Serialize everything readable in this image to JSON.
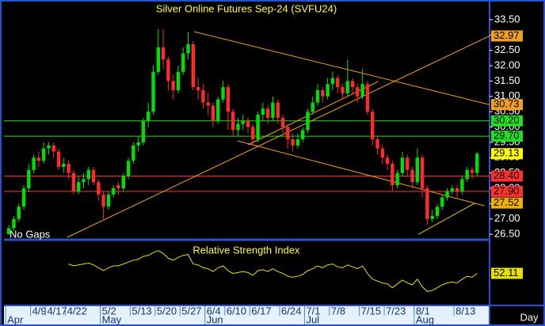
{
  "chart_data": [
    {
      "type": "candlestick",
      "title": "Silver Online Futures Sep-24 (SVFU24)",
      "note": "No Gaps",
      "x_label": "Day",
      "categories": [
        null,
        null,
        null,
        null,
        null,
        "4/9",
        null,
        null,
        "4/17",
        null,
        null,
        null,
        "4/22",
        null,
        null,
        null,
        null,
        null,
        null,
        "5/2",
        null,
        null,
        null,
        null,
        null,
        "5/13",
        null,
        null,
        null,
        null,
        "5/20",
        null,
        null,
        null,
        null,
        "5/27",
        null,
        null,
        null,
        null,
        "6/4",
        null,
        null,
        null,
        "6/10",
        null,
        null,
        null,
        null,
        "6/17",
        null,
        null,
        null,
        null,
        null,
        "6/24",
        null,
        null,
        null,
        null,
        "7/1",
        null,
        null,
        null,
        null,
        "7/8",
        null,
        null,
        null,
        null,
        null,
        "7/15",
        null,
        null,
        null,
        null,
        "7/23",
        null,
        null,
        null,
        null,
        null,
        "8/1",
        null,
        null,
        null,
        null,
        null,
        null,
        null,
        "8/13",
        null,
        null,
        null,
        null
      ],
      "months": [
        "Apr",
        null,
        null,
        null,
        null,
        null,
        null,
        null,
        null,
        null,
        null,
        null,
        null,
        null,
        null,
        null,
        null,
        null,
        null,
        "May",
        null,
        null,
        null,
        null,
        null,
        null,
        null,
        null,
        null,
        null,
        null,
        null,
        null,
        null,
        null,
        null,
        null,
        null,
        null,
        null,
        "Jun",
        null,
        null,
        null,
        null,
        null,
        null,
        null,
        null,
        null,
        null,
        null,
        null,
        null,
        null,
        null,
        null,
        null,
        null,
        null,
        "Jul",
        null,
        null,
        null,
        null,
        null,
        null,
        null,
        null,
        null,
        null,
        null,
        null,
        null,
        null,
        null,
        null,
        null,
        null,
        null,
        null,
        null,
        "Aug",
        null,
        null,
        null,
        null,
        null,
        null,
        null,
        null,
        null,
        null,
        null,
        null
      ],
      "open": [
        26.5,
        26.7,
        27.0,
        27.4,
        28.0,
        28.6,
        29.0,
        28.9,
        29.3,
        29.4,
        29.2,
        28.7,
        28.8,
        28.5,
        27.9,
        28.2,
        28.3,
        28.6,
        28.2,
        27.8,
        27.4,
        27.8,
        28.1,
        28.0,
        28.4,
        28.9,
        29.4,
        29.5,
        30.2,
        30.5,
        31.8,
        32.6,
        32.2,
        31.5,
        31.2,
        31.8,
        32.4,
        32.7,
        31.3,
        31.2,
        30.8,
        30.7,
        30.2,
        30.9,
        31.3,
        30.5,
        29.9,
        30.1,
        30.2,
        30.0,
        29.6,
        30.4,
        30.6,
        30.3,
        30.8,
        30.3,
        30.0,
        29.6,
        29.4,
        29.6,
        29.9,
        30.5,
        30.8,
        31.2,
        31.0,
        31.4,
        31.6,
        31.3,
        31.1,
        31.5,
        31.3,
        31.0,
        31.4,
        30.5,
        29.6,
        29.3,
        29.0,
        28.8,
        28.1,
        28.5,
        29.0,
        28.6,
        28.2,
        29.0,
        28.0,
        27.0,
        27.1,
        27.4,
        27.7,
        27.9,
        28.0,
        27.9,
        28.3,
        28.6,
        28.5
      ],
      "high": [
        26.8,
        27.1,
        27.5,
        28.1,
        28.8,
        29.1,
        29.2,
        29.5,
        29.5,
        29.5,
        29.3,
        29.0,
        28.9,
        28.6,
        28.4,
        28.5,
        28.7,
        28.7,
        28.3,
        27.9,
        27.9,
        28.1,
        28.2,
        28.5,
        29.0,
        29.5,
        29.7,
        30.3,
        30.8,
        32.0,
        33.2,
        33.2,
        32.3,
        31.7,
        32.0,
        32.6,
        33.1,
        32.8,
        31.6,
        31.4,
        31.1,
        30.8,
        31.0,
        31.5,
        31.4,
        30.6,
        30.3,
        30.4,
        30.3,
        30.1,
        30.5,
        30.8,
        30.7,
        31.0,
        30.9,
        30.4,
        30.1,
        29.8,
        29.8,
        30.0,
        30.6,
        31.0,
        31.4,
        31.3,
        31.6,
        31.8,
        31.7,
        31.4,
        32.2,
        31.6,
        31.4,
        31.9,
        31.5,
        30.6,
        29.7,
        29.4,
        29.1,
        28.9,
        28.6,
        29.2,
        29.1,
        28.7,
        29.3,
        29.1,
        28.1,
        27.3,
        27.5,
        27.8,
        28.0,
        28.1,
        28.1,
        28.4,
        28.7,
        28.7,
        29.2
      ],
      "low": [
        26.5,
        26.6,
        26.9,
        27.3,
        27.9,
        28.5,
        28.7,
        28.8,
        29.1,
        29.0,
        28.6,
        28.5,
        28.3,
        27.8,
        27.8,
        28.0,
        28.1,
        28.1,
        27.6,
        27.0,
        27.3,
        27.7,
        27.8,
        27.9,
        28.3,
        28.8,
        29.2,
        29.4,
        30.0,
        30.4,
        31.7,
        31.9,
        31.2,
        30.9,
        31.1,
        31.7,
        32.2,
        31.2,
        30.9,
        30.6,
        30.4,
        30.0,
        30.1,
        30.8,
        29.9,
        29.7,
        29.7,
        29.9,
        29.8,
        29.4,
        29.5,
        30.2,
        30.1,
        30.2,
        30.1,
        29.8,
        29.3,
        29.2,
        29.3,
        29.5,
        29.8,
        30.4,
        30.7,
        30.8,
        30.9,
        31.2,
        31.1,
        30.9,
        31.0,
        31.1,
        30.8,
        30.9,
        30.4,
        29.4,
        29.1,
        28.8,
        28.6,
        27.9,
        28.0,
        28.4,
        28.4,
        28.0,
        28.1,
        27.7,
        26.8,
        26.9,
        27.0,
        27.3,
        27.6,
        27.8,
        27.7,
        27.8,
        28.2,
        28.3,
        28.4
      ],
      "close": [
        26.7,
        27.0,
        27.4,
        28.0,
        28.6,
        29.0,
        28.9,
        29.3,
        29.4,
        29.2,
        28.7,
        28.8,
        28.5,
        27.9,
        28.2,
        28.3,
        28.6,
        28.2,
        27.8,
        27.4,
        27.8,
        28.0,
        28.0,
        28.4,
        28.9,
        29.4,
        29.5,
        30.2,
        30.5,
        31.8,
        32.6,
        32.2,
        31.5,
        31.2,
        31.8,
        32.4,
        32.7,
        31.3,
        31.2,
        30.8,
        30.7,
        30.2,
        30.9,
        31.3,
        30.5,
        29.9,
        30.1,
        30.2,
        30.0,
        29.6,
        30.4,
        30.6,
        30.3,
        30.8,
        30.3,
        30.0,
        29.6,
        29.4,
        29.6,
        29.9,
        30.5,
        30.8,
        31.2,
        31.0,
        31.4,
        31.6,
        31.3,
        31.1,
        31.5,
        31.3,
        31.0,
        31.4,
        30.5,
        29.6,
        29.3,
        29.0,
        28.8,
        28.1,
        28.5,
        29.0,
        28.6,
        28.2,
        29.0,
        28.0,
        27.0,
        27.1,
        27.4,
        27.7,
        27.9,
        28.0,
        27.9,
        28.3,
        28.6,
        28.5,
        29.13
      ],
      "up_color": "#00e000",
      "down_color": "#ff2a2a",
      "last_color": "#ffff00",
      "ylim": [
        26.4,
        34.04
      ],
      "yticks": [
        {
          "value": 26.5,
          "label": "26.50"
        },
        {
          "value": 27,
          "label": "27.00"
        },
        {
          "value": 27.5,
          "label": "27.50"
        },
        {
          "value": 28,
          "label": "28.00"
        },
        {
          "value": 28.5,
          "label": "28.50"
        },
        {
          "value": 29,
          "label": "29.00"
        },
        {
          "value": 29.5,
          "label": "29.50"
        },
        {
          "value": 30,
          "label": "30.00"
        },
        {
          "value": 30.5,
          "label": "30.50"
        },
        {
          "value": 31,
          "label": "31.00"
        },
        {
          "value": 31.5,
          "label": "31.50"
        },
        {
          "value": 32,
          "label": "32.00"
        },
        {
          "value": 32.5,
          "label": "32.50"
        },
        {
          "value": 33,
          "label": "33.00"
        },
        {
          "value": 33.5,
          "label": "33.50"
        }
      ],
      "levels": [
        {
          "value": 30.2,
          "label": "30.20",
          "color": "#22dd22"
        },
        {
          "value": 29.7,
          "label": "29.70",
          "color": "#22dd22"
        },
        {
          "value": 28.4,
          "label": "28.40",
          "color": "#ff3030"
        },
        {
          "value": 27.9,
          "label": "27.90",
          "color": "#ff3030"
        }
      ],
      "trendlines": [
        {
          "x": [
            11.7,
            96.5
          ],
          "y": [
            26.4,
            32.97
          ],
          "color": "#f0a020",
          "label_color": "#f0a020"
        },
        {
          "x": [
            37.2,
            96.5
          ],
          "y": [
            33.11,
            30.73
          ],
          "color": "#f0a020",
          "label_color": "#f0a020"
        },
        {
          "x": [
            48,
            74.2
          ],
          "y": [
            29.42,
            31.49
          ],
          "color": "#f0a020"
        },
        {
          "x": [
            45.9,
            95.5
          ],
          "y": [
            29.55,
            27.43
          ],
          "color": "#f0a020"
        },
        {
          "x": [
            82.2,
            93.6
          ],
          "y": [
            26.5,
            27.52
          ],
          "color": "#f0c020",
          "label_color": "#f0b000"
        }
      ]
    },
    {
      "type": "line",
      "title": "Relative Strength Index",
      "color": "#e8e000",
      "ylim": [
        20,
        80
      ],
      "values": [
        null,
        null,
        null,
        null,
        null,
        null,
        null,
        null,
        null,
        null,
        null,
        null,
        62,
        60,
        61,
        62,
        63,
        61,
        58,
        55,
        58,
        60,
        60,
        62,
        64,
        66,
        67,
        70,
        71,
        74,
        76,
        73,
        68,
        66,
        69,
        71,
        72,
        62,
        61,
        58,
        57,
        54,
        58,
        60,
        55,
        52,
        53,
        54,
        53,
        50,
        55,
        56,
        54,
        57,
        54,
        52,
        49,
        48,
        49,
        51,
        55,
        57,
        60,
        58,
        61,
        62,
        59,
        58,
        61,
        59,
        57,
        60,
        52,
        46,
        44,
        42,
        41,
        37,
        41,
        45,
        42,
        40,
        46,
        38,
        33,
        34,
        37,
        40,
        42,
        43,
        42,
        46,
        49,
        48,
        52.11
      ]
    }
  ]
}
